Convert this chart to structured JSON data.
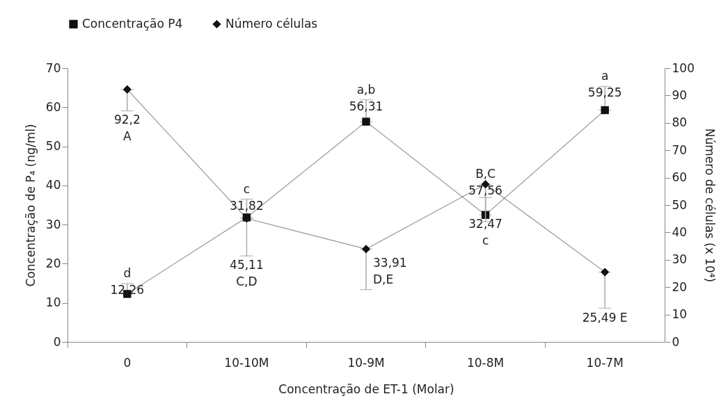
{
  "chart_data": {
    "type": "line",
    "xlabel": "Concentração de ET-1 (Molar)",
    "ylabel": "Concentração de P₄ (ng/ml)",
    "y2label": "Número de células (x 10⁴)",
    "categories": [
      "0",
      "10-10M",
      "10-9M",
      "10-8M",
      "10-7M"
    ],
    "series": [
      {
        "name": "Concentração P4",
        "color": "#111111",
        "marker": "square",
        "values": [
          12.26,
          31.82,
          56.31,
          32.47,
          59.25
        ],
        "errors": [
          [
            12.26,
            14.9
          ],
          [
            31.82,
            36.5
          ],
          [
            56.31,
            61.9
          ],
          [
            32.47,
            36.9
          ],
          [
            59.25,
            65.3
          ]
        ],
        "value_labels": [
          "d\n12,26",
          "c\n31,82",
          "a,b\n56,31",
          "32,47\nc",
          "a\n59,25"
        ]
      },
      {
        "name": "Número células",
        "color": "#111111",
        "marker": "diamond",
        "axis": "y2",
        "values": [
          92.2,
          45.11,
          33.91,
          57.56,
          25.49
        ],
        "errors": [
          [
            84.4,
            92.2
          ],
          [
            31.4,
            45.11
          ],
          [
            19.1,
            33.91
          ],
          [
            43.9,
            57.56
          ],
          [
            12.3,
            25.49
          ]
        ],
        "value_labels": [
          "92,2\n\nA",
          "45,11\nC,D",
          "33,91\nD,E",
          "B,C\n57,56",
          "25,49    E"
        ]
      }
    ],
    "ylim": [
      0,
      70
    ],
    "yticks": [
      0,
      10,
      20,
      30,
      40,
      50,
      60,
      70
    ],
    "y2lim": [
      0,
      100
    ],
    "y2ticks": [
      0,
      10,
      20,
      30,
      40,
      50,
      60,
      70,
      80,
      90,
      100
    ],
    "grid": false,
    "legend": "top",
    "data_labels": true
  }
}
